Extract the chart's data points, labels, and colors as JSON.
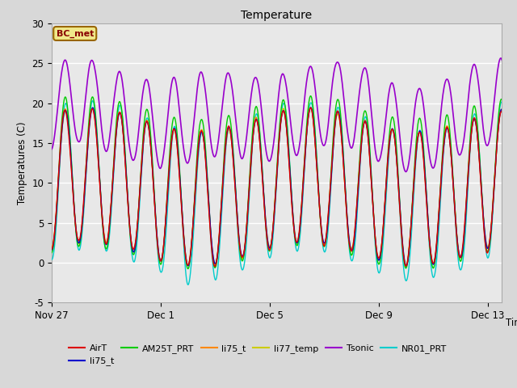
{
  "title": "Temperature",
  "ylabel": "Temperatures (C)",
  "xlabel": "Time",
  "ylim": [
    -5,
    30
  ],
  "yticks": [
    -5,
    0,
    5,
    10,
    15,
    20,
    25,
    30
  ],
  "bg_color": "#d8d8d8",
  "plot_bg_color": "#e8e8e8",
  "x_labels": [
    "Nov 27",
    "Dec 1",
    "Dec 5",
    "Dec 9",
    "Dec 13"
  ],
  "x_tick_days": [
    0,
    4,
    8,
    12,
    16
  ],
  "annotation": "BC_met",
  "n_days": 17,
  "legend_entries": [
    {
      "label": "AirT",
      "color": "#dd0000"
    },
    {
      "label": "li75_t",
      "color": "#0000cc"
    },
    {
      "label": "AM25T_PRT",
      "color": "#00cc00"
    },
    {
      "label": "li75_t",
      "color": "#ff8800"
    },
    {
      "label": "li77_temp",
      "color": "#cccc00"
    },
    {
      "label": "Tsonic",
      "color": "#9900cc"
    },
    {
      "label": "NR01_PRT",
      "color": "#00cccc"
    }
  ]
}
